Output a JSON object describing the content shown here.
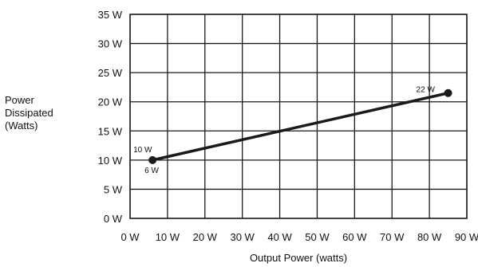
{
  "chart_data": {
    "type": "line",
    "xlabel": "Output Power (watts)",
    "ylabel": [
      "Power",
      "Dissipated",
      "(Watts)"
    ],
    "x_ticks": [
      "0 W",
      "10 W",
      "20 W",
      "30 W",
      "40 W",
      "50 W",
      "60 W",
      "70 W",
      "80 W",
      "90 W"
    ],
    "y_ticks": [
      "0 W",
      "5 W",
      "10 W",
      "15 W",
      "20 W",
      "25 W",
      "30 W",
      "35 W"
    ],
    "xlim": [
      0,
      90
    ],
    "ylim": [
      0,
      35
    ],
    "grid": true,
    "series": [
      {
        "x": [
          6,
          85
        ],
        "y": [
          10,
          21.5
        ]
      }
    ],
    "annotations": [
      {
        "text": "10 W"
      },
      {
        "text": "6 W"
      },
      {
        "text": "22 W"
      }
    ],
    "colors": {
      "line": "#1a1a1a",
      "grid": "#1a1a1a"
    }
  }
}
